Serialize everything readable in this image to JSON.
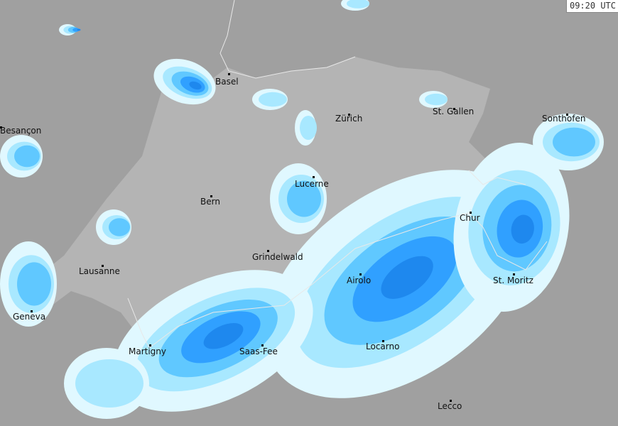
{
  "timestamp": "09:20 UTC",
  "colors": {
    "background_outside": "#a0a0a0",
    "switzerland": "#b4b4b4",
    "precip_very_light": "#e0f8ff",
    "precip_light": "#a8e8ff",
    "precip_moderate": "#60c8ff",
    "precip_heavy": "#30a0ff",
    "precip_very_heavy": "#1e88ee"
  },
  "cities": [
    {
      "name": "Basel"
    },
    {
      "name": "Zürich"
    },
    {
      "name": "St. Gallen"
    },
    {
      "name": "Besançon"
    },
    {
      "name": "Sonthofen"
    },
    {
      "name": "Lucerne"
    },
    {
      "name": "Bern"
    },
    {
      "name": "Chur"
    },
    {
      "name": "Grindelwald"
    },
    {
      "name": "Lausanne"
    },
    {
      "name": "Airolo"
    },
    {
      "name": "St. Moritz"
    },
    {
      "name": "Geneva"
    },
    {
      "name": "Martigny"
    },
    {
      "name": "Saas-Fee"
    },
    {
      "name": "Locarno"
    },
    {
      "name": "Lecco"
    }
  ]
}
